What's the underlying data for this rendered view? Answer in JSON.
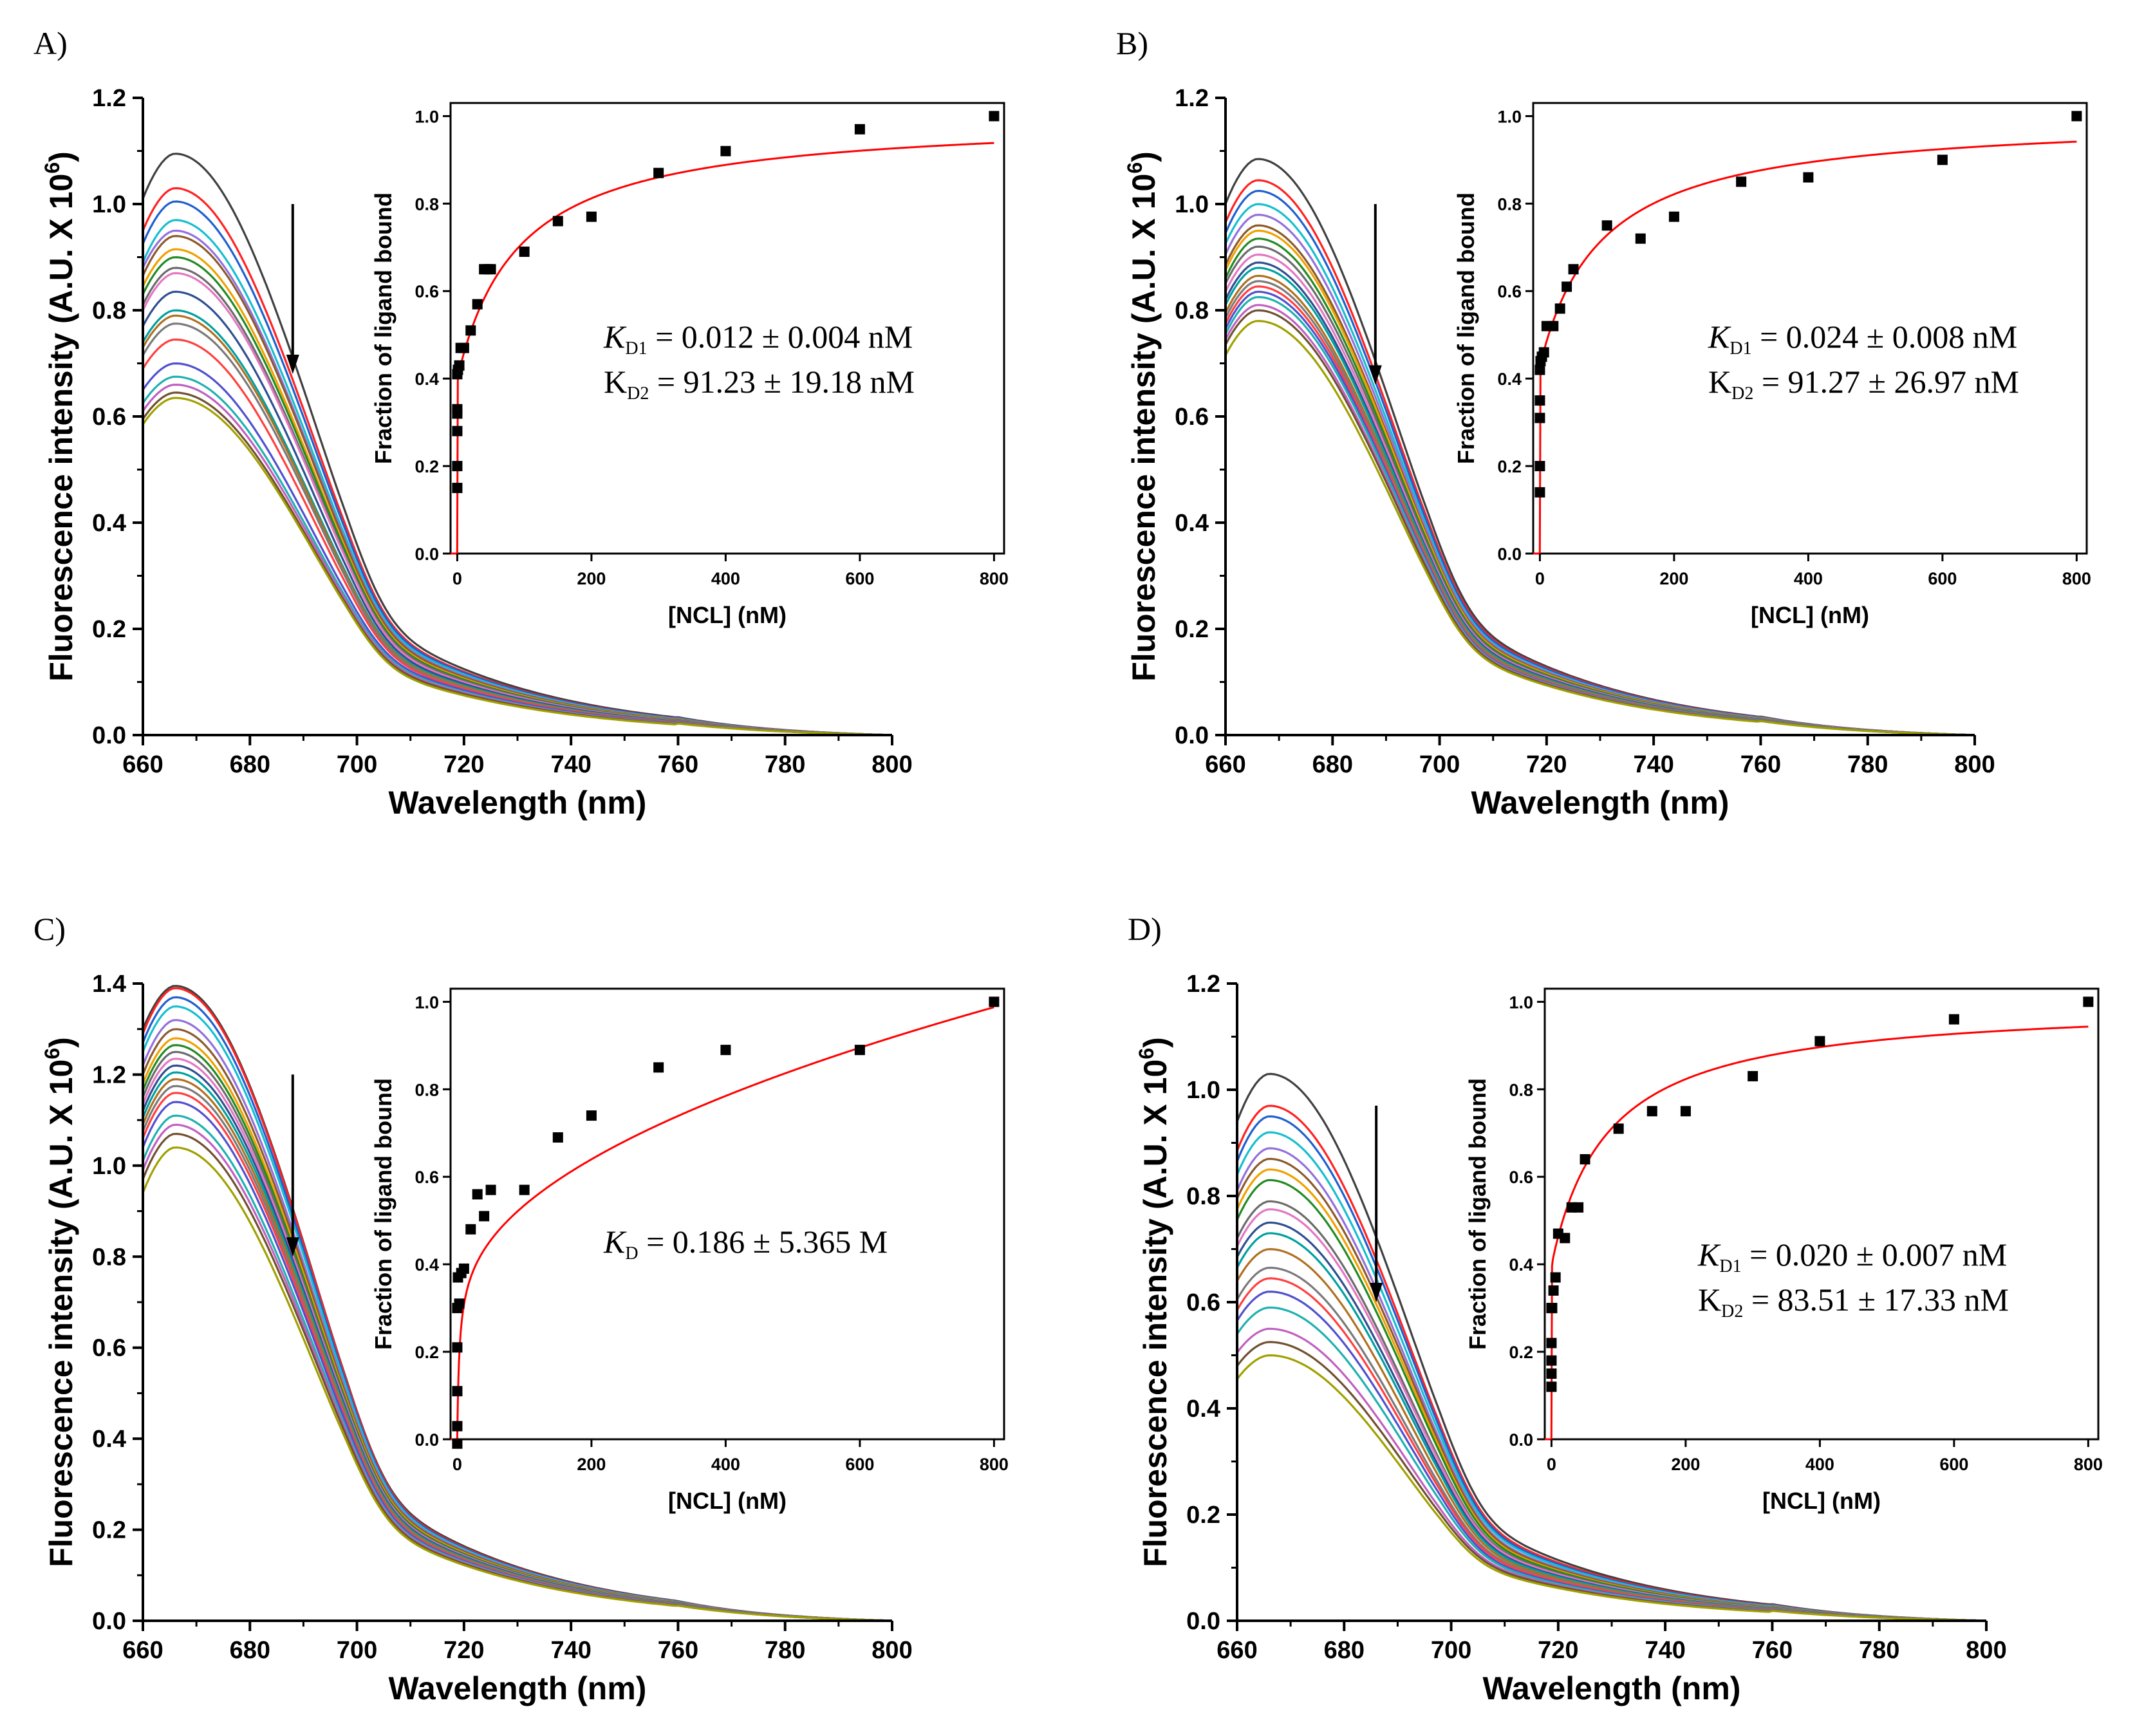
{
  "figure": {
    "colors": {
      "axis": "#000000",
      "fit": "#ff0000",
      "marker": "#000000",
      "spectra": [
        "#404040",
        "#ff2222",
        "#1f5fd0",
        "#17becf",
        "#9370db",
        "#8b5a2b",
        "#f0a000",
        "#228b22",
        "#6b6b6b",
        "#e377c2",
        "#2f4f8f",
        "#00a0a0",
        "#b07020",
        "#7a7a7a",
        "#ff4040",
        "#5050d0",
        "#20b0b0",
        "#c060c0",
        "#705030",
        "#a0a000"
      ]
    }
  },
  "chart_data": [
    {
      "panel": "A)",
      "type": "line",
      "main": {
        "xlabel": "Wavelength (nm)",
        "ylabel_base": "Fluorescence intensity (A.U. X 10",
        "ylabel_exp": "6",
        "ylabel_close": ")",
        "xlim": [
          660,
          800
        ],
        "ylim": [
          0,
          1.2
        ],
        "xticks": [
          "660",
          "680",
          "700",
          "720",
          "740",
          "760",
          "780",
          "800"
        ],
        "yticks": [
          "0.0",
          "0.2",
          "0.4",
          "0.6",
          "0.8",
          "1.0",
          "1.2"
        ],
        "n_series": 20,
        "peak_nm": 666,
        "peak_values": [
          1.095,
          1.03,
          1.005,
          0.97,
          0.95,
          0.94,
          0.915,
          0.9,
          0.88,
          0.87,
          0.835,
          0.8,
          0.79,
          0.775,
          0.745,
          0.7,
          0.675,
          0.66,
          0.645,
          0.635
        ],
        "value_at_660": [
          1.01,
          0.95,
          0.925,
          0.89,
          0.88,
          0.865,
          0.845,
          0.83,
          0.81,
          0.8,
          0.77,
          0.74,
          0.73,
          0.715,
          0.69,
          0.65,
          0.625,
          0.61,
          0.595,
          0.585
        ],
        "tail_720": [
          0.125,
          0.12,
          0.118,
          0.115,
          0.112,
          0.11,
          0.107,
          0.105,
          0.103,
          0.1,
          0.097,
          0.094,
          0.092,
          0.09,
          0.088,
          0.085,
          0.082,
          0.08,
          0.078,
          0.075
        ],
        "arrow_x": 688,
        "arrow_y": [
          1.0,
          0.68
        ]
      },
      "inset": {
        "xlabel": "[NCL] (nM)",
        "ylabel": "Fraction of ligand bound",
        "xlim": [
          -10,
          815
        ],
        "ylim": [
          0,
          1.03
        ],
        "xticks": [
          "0",
          "200",
          "400",
          "600",
          "800"
        ],
        "yticks": [
          "0.0",
          "0.2",
          "0.4",
          "0.6",
          "0.8",
          "1.0"
        ],
        "points": [
          [
            0,
            0.15
          ],
          [
            0,
            0.2
          ],
          [
            0,
            0.28
          ],
          [
            0,
            0.32
          ],
          [
            0,
            0.33
          ],
          [
            0,
            0.41
          ],
          [
            1,
            0.42
          ],
          [
            3,
            0.43
          ],
          [
            5,
            0.47
          ],
          [
            10,
            0.47
          ],
          [
            20,
            0.51
          ],
          [
            30,
            0.57
          ],
          [
            40,
            0.65
          ],
          [
            45,
            0.65
          ],
          [
            50,
            0.65
          ],
          [
            100,
            0.69
          ],
          [
            150,
            0.76
          ],
          [
            200,
            0.77
          ],
          [
            300,
            0.87
          ],
          [
            400,
            0.92
          ],
          [
            600,
            0.97
          ],
          [
            800,
            1.0
          ]
        ],
        "fit": {
          "model": "two_site",
          "KD1": 0.012,
          "KD2": 91.23,
          "A": 0.4
        },
        "kd_lines": [
          {
            "prefix": "K",
            "sub": "D1",
            "text": " = 0.012 ± 0.004 nM",
            "italic": true
          },
          {
            "prefix": "K",
            "sub": "D2",
            "text": " = 91.23 ± 19.18 nM",
            "italic": false
          }
        ]
      }
    },
    {
      "panel": "B)",
      "type": "line",
      "main": {
        "xlabel": "Wavelength (nm)",
        "ylabel_base": "Fluorescence intensity (A.U. X 10",
        "ylabel_exp": "6",
        "ylabel_close": ")",
        "xlim": [
          660,
          800
        ],
        "ylim": [
          0,
          1.2
        ],
        "xticks": [
          "660",
          "680",
          "700",
          "720",
          "740",
          "760",
          "780",
          "800"
        ],
        "yticks": [
          "0.0",
          "0.2",
          "0.4",
          "0.6",
          "0.8",
          "1.0",
          "1.2"
        ],
        "n_series": 20,
        "peak_nm": 666,
        "peak_values": [
          1.085,
          1.045,
          1.025,
          1.0,
          0.98,
          0.96,
          0.95,
          0.935,
          0.92,
          0.905,
          0.89,
          0.88,
          0.865,
          0.855,
          0.845,
          0.835,
          0.825,
          0.81,
          0.8,
          0.78
        ],
        "value_at_660": [
          1.0,
          0.965,
          0.945,
          0.925,
          0.905,
          0.885,
          0.875,
          0.86,
          0.85,
          0.835,
          0.82,
          0.81,
          0.795,
          0.785,
          0.775,
          0.765,
          0.755,
          0.745,
          0.735,
          0.715
        ],
        "tail_720": [
          0.13,
          0.127,
          0.125,
          0.122,
          0.12,
          0.118,
          0.116,
          0.114,
          0.112,
          0.11,
          0.108,
          0.106,
          0.104,
          0.102,
          0.1,
          0.099,
          0.098,
          0.097,
          0.096,
          0.094
        ],
        "arrow_x": 688,
        "arrow_y": [
          1.0,
          0.66
        ]
      },
      "inset": {
        "xlabel": "[NCL] (nM)",
        "ylabel": "Fraction of ligand bound",
        "xlim": [
          -10,
          815
        ],
        "ylim": [
          0,
          1.03
        ],
        "xticks": [
          "0",
          "200",
          "400",
          "600",
          "800"
        ],
        "yticks": [
          "0.0",
          "0.2",
          "0.4",
          "0.6",
          "0.8",
          "1.0"
        ],
        "points": [
          [
            0,
            0.14
          ],
          [
            0,
            0.2
          ],
          [
            0,
            0.31
          ],
          [
            0,
            0.35
          ],
          [
            0,
            0.42
          ],
          [
            1,
            0.44
          ],
          [
            3,
            0.45
          ],
          [
            6,
            0.46
          ],
          [
            10,
            0.52
          ],
          [
            20,
            0.52
          ],
          [
            30,
            0.56
          ],
          [
            40,
            0.61
          ],
          [
            50,
            0.65
          ],
          [
            100,
            0.75
          ],
          [
            150,
            0.72
          ],
          [
            200,
            0.77
          ],
          [
            300,
            0.85
          ],
          [
            400,
            0.86
          ],
          [
            600,
            0.9
          ],
          [
            800,
            1.0
          ]
        ],
        "fit": {
          "model": "two_site",
          "KD1": 0.024,
          "KD2": 91.27,
          "A": 0.43
        },
        "kd_lines": [
          {
            "prefix": "K",
            "sub": "D1",
            "text": " = 0.024 ± 0.008 nM",
            "italic": true
          },
          {
            "prefix": "K",
            "sub": "D2",
            "text": " = 91.27 ± 26.97 nM",
            "italic": false
          }
        ]
      }
    },
    {
      "panel": "C)",
      "type": "line",
      "main": {
        "xlabel": "Wavelength (nm)",
        "ylabel_base": "Fluorescence intensity (A.U. X 10",
        "ylabel_exp": "6",
        "ylabel_close": ")",
        "xlim": [
          660,
          800
        ],
        "ylim": [
          0,
          1.4
        ],
        "xticks": [
          "660",
          "680",
          "700",
          "720",
          "740",
          "760",
          "780",
          "800"
        ],
        "yticks": [
          "0.0",
          "0.2",
          "0.4",
          "0.6",
          "0.8",
          "1.0",
          "1.2",
          "1.4"
        ],
        "n_series": 20,
        "peak_nm": 666,
        "peak_values": [
          1.395,
          1.39,
          1.37,
          1.35,
          1.32,
          1.3,
          1.28,
          1.265,
          1.25,
          1.235,
          1.22,
          1.205,
          1.19,
          1.175,
          1.16,
          1.14,
          1.11,
          1.09,
          1.07,
          1.04
        ],
        "value_at_660": [
          1.3,
          1.29,
          1.27,
          1.25,
          1.22,
          1.2,
          1.18,
          1.165,
          1.15,
          1.135,
          1.12,
          1.105,
          1.09,
          1.075,
          1.06,
          1.04,
          1.01,
          0.99,
          0.97,
          0.94
        ],
        "tail_720": [
          0.165,
          0.162,
          0.16,
          0.158,
          0.155,
          0.153,
          0.15,
          0.148,
          0.146,
          0.144,
          0.142,
          0.14,
          0.138,
          0.136,
          0.134,
          0.132,
          0.13,
          0.128,
          0.126,
          0.123
        ],
        "arrow_x": 688,
        "arrow_y": [
          1.2,
          0.8
        ]
      },
      "inset": {
        "xlabel": "[NCL] (nM)",
        "ylabel": "Fraction of ligand bound",
        "xlim": [
          -10,
          815
        ],
        "ylim": [
          0,
          1.03
        ],
        "xticks": [
          "0",
          "200",
          "400",
          "600",
          "800"
        ],
        "yticks": [
          "0.0",
          "0.2",
          "0.4",
          "0.6",
          "0.8",
          "1.0"
        ],
        "points": [
          [
            0,
            -0.01
          ],
          [
            0,
            0.03
          ],
          [
            0,
            0.11
          ],
          [
            0,
            0.21
          ],
          [
            0,
            0.3
          ],
          [
            1,
            0.37
          ],
          [
            3,
            0.31
          ],
          [
            6,
            0.38
          ],
          [
            10,
            0.39
          ],
          [
            20,
            0.48
          ],
          [
            30,
            0.56
          ],
          [
            40,
            0.51
          ],
          [
            50,
            0.57
          ],
          [
            100,
            0.57
          ],
          [
            150,
            0.69
          ],
          [
            200,
            0.74
          ],
          [
            300,
            0.85
          ],
          [
            400,
            0.89
          ],
          [
            600,
            0.89
          ],
          [
            800,
            1.0
          ]
        ],
        "fit": {
          "model": "sqrt_hill",
          "a": 0.0343,
          "c": 0.016,
          "x0": 0.4
        },
        "kd_lines": [
          {
            "prefix": "K",
            "sub": "D",
            "text": " = 0.186 ± 5.365 M",
            "italic": true
          }
        ]
      }
    },
    {
      "panel": "D)",
      "type": "line",
      "main": {
        "xlabel": "Wavelength (nm)",
        "ylabel_base": "Fluorescence intensity (A.U. X 10",
        "ylabel_exp": "6",
        "ylabel_close": ")",
        "xlim": [
          660,
          800
        ],
        "ylim": [
          0,
          1.2
        ],
        "xticks": [
          "660",
          "680",
          "700",
          "720",
          "740",
          "760",
          "780",
          "800"
        ],
        "yticks": [
          "0.0",
          "0.2",
          "0.4",
          "0.6",
          "0.8",
          "1.0",
          "1.2"
        ],
        "n_series": 20,
        "peak_nm": 666,
        "peak_values": [
          1.03,
          0.97,
          0.95,
          0.92,
          0.89,
          0.87,
          0.85,
          0.83,
          0.79,
          0.775,
          0.75,
          0.73,
          0.7,
          0.665,
          0.645,
          0.62,
          0.59,
          0.55,
          0.525,
          0.5
        ],
        "value_at_660": [
          0.94,
          0.885,
          0.865,
          0.84,
          0.81,
          0.795,
          0.775,
          0.755,
          0.72,
          0.705,
          0.685,
          0.665,
          0.64,
          0.605,
          0.585,
          0.565,
          0.54,
          0.505,
          0.48,
          0.455
        ],
        "tail_720": [
          0.115,
          0.11,
          0.107,
          0.104,
          0.1,
          0.098,
          0.095,
          0.093,
          0.09,
          0.088,
          0.085,
          0.083,
          0.08,
          0.077,
          0.075,
          0.072,
          0.07,
          0.067,
          0.065,
          0.062
        ],
        "arrow_x": 686,
        "arrow_y": [
          0.97,
          0.6
        ]
      },
      "inset": {
        "xlabel": "[NCL] (nM)",
        "ylabel": "Fraction of ligand bound",
        "xlim": [
          -10,
          815
        ],
        "ylim": [
          0,
          1.03
        ],
        "xticks": [
          "0",
          "200",
          "400",
          "600",
          "800"
        ],
        "yticks": [
          "0.0",
          "0.2",
          "0.4",
          "0.6",
          "0.8",
          "1.0"
        ],
        "points": [
          [
            0,
            0.12
          ],
          [
            0,
            0.15
          ],
          [
            0,
            0.18
          ],
          [
            0,
            0.22
          ],
          [
            0,
            0.3
          ],
          [
            1,
            0.3
          ],
          [
            3,
            0.34
          ],
          [
            6,
            0.37
          ],
          [
            10,
            0.47
          ],
          [
            20,
            0.46
          ],
          [
            30,
            0.53
          ],
          [
            40,
            0.53
          ],
          [
            50,
            0.64
          ],
          [
            100,
            0.71
          ],
          [
            150,
            0.75
          ],
          [
            200,
            0.75
          ],
          [
            300,
            0.83
          ],
          [
            400,
            0.91
          ],
          [
            600,
            0.96
          ],
          [
            800,
            1.0
          ]
        ],
        "fit": {
          "model": "two_site",
          "KD1": 0.02,
          "KD2": 83.51,
          "A": 0.4
        },
        "kd_lines": [
          {
            "prefix": "K",
            "sub": "D1",
            "text": " = 0.020 ± 0.007 nM",
            "italic": true
          },
          {
            "prefix": "K",
            "sub": "D2",
            "text": " = 83.51 ± 17.33 nM",
            "italic": false
          }
        ]
      }
    }
  ]
}
